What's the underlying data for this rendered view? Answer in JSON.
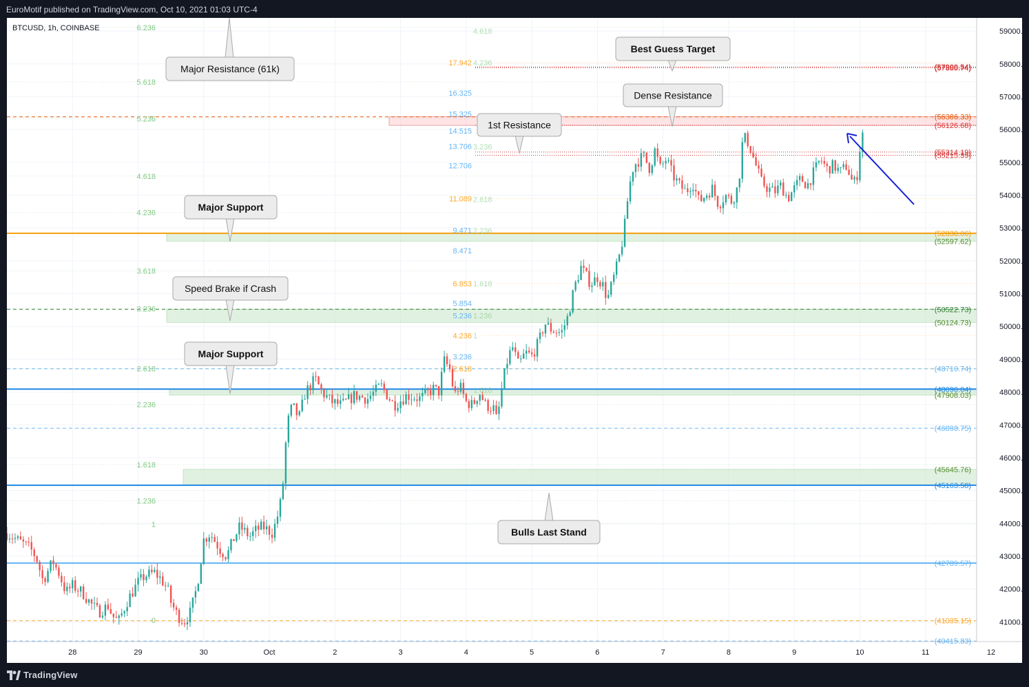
{
  "header": {
    "published_by": "EuroMotif published on TradingView.com, Oct 10, 2021 01:03 UTC-4"
  },
  "footer": {
    "logo_icon": "tradingview-logo-icon",
    "brand": "TradingView"
  },
  "colors": {
    "up": "#26a69a",
    "down": "#ef5350",
    "fib_left": "#81c784",
    "fib_mid_blue": "#64b5f6",
    "fib_mid_orange": "#ffa726",
    "res_red": "#d32f2f",
    "major_support": "#f59e0b",
    "support_blue": "#42a5f5",
    "zone_green": "#c8e6c9",
    "zone_red": "#ffcdd2",
    "arrow": "#1520d6"
  },
  "chart_data": {
    "type": "candlestick",
    "symbol": "BTCUSD, 1h, COINBASE",
    "y_axis": {
      "ylim": [
        40400,
        59400
      ],
      "ticks": [
        41000,
        42000,
        43000,
        44000,
        45000,
        46000,
        47000,
        48000,
        49000,
        50000,
        51000,
        52000,
        53000,
        54000,
        55000,
        56000,
        57000,
        58000,
        59000
      ],
      "tick_labels": [
        "41000.00",
        "42000.00",
        "43000.00",
        "44000.00",
        "45000.00",
        "46000.00",
        "47000.00",
        "48000.00",
        "49000.00",
        "50000.00",
        "51000.00",
        "52000.00",
        "53000.00",
        "54000.00",
        "55000.00",
        "56000.00",
        "57000.00",
        "58000.00",
        "59000.00"
      ]
    },
    "x_axis": {
      "x_range_days": [
        0,
        14.78
      ],
      "ticks": [
        {
          "d": 1,
          "label": "28"
        },
        {
          "d": 2,
          "label": "29"
        },
        {
          "d": 3,
          "label": "30"
        },
        {
          "d": 4,
          "label": "Oct"
        },
        {
          "d": 5,
          "label": "2"
        },
        {
          "d": 6,
          "label": "3"
        },
        {
          "d": 7,
          "label": "4"
        },
        {
          "d": 8,
          "label": "5"
        },
        {
          "d": 9,
          "label": "6"
        },
        {
          "d": 10,
          "label": "7"
        },
        {
          "d": 11,
          "label": "8"
        },
        {
          "d": 12,
          "label": "9"
        },
        {
          "d": 13,
          "label": "10"
        },
        {
          "d": 14,
          "label": "11"
        },
        {
          "d": 15,
          "label": "12"
        }
      ]
    },
    "price_path": [
      [
        0.0,
        43700
      ],
      [
        0.35,
        43250
      ],
      [
        0.45,
        42950
      ],
      [
        0.55,
        42250
      ],
      [
        0.65,
        42650
      ],
      [
        0.7,
        42850
      ],
      [
        0.8,
        42450
      ],
      [
        0.9,
        41900
      ],
      [
        1.0,
        42100
      ],
      [
        1.15,
        41900
      ],
      [
        1.3,
        41500
      ],
      [
        1.4,
        41300
      ],
      [
        1.55,
        41500
      ],
      [
        1.6,
        41200
      ],
      [
        1.7,
        41000
      ],
      [
        1.85,
        41700
      ],
      [
        2.0,
        42200
      ],
      [
        2.1,
        42400
      ],
      [
        2.25,
        42500
      ],
      [
        2.35,
        42300
      ],
      [
        2.45,
        42000
      ],
      [
        2.5,
        41600
      ],
      [
        2.6,
        41200
      ],
      [
        2.7,
        41000
      ],
      [
        2.8,
        41300
      ],
      [
        2.9,
        42100
      ],
      [
        3.0,
        43500
      ],
      [
        3.1,
        43700
      ],
      [
        3.25,
        43200
      ],
      [
        3.35,
        43000
      ],
      [
        3.45,
        43500
      ],
      [
        3.55,
        43900
      ],
      [
        3.7,
        43600
      ],
      [
        3.8,
        43800
      ],
      [
        3.9,
        43900
      ],
      [
        4.05,
        43700
      ],
      [
        4.15,
        44400
      ],
      [
        4.2,
        45000
      ],
      [
        4.27,
        47000
      ],
      [
        4.35,
        47600
      ],
      [
        4.45,
        47200
      ],
      [
        4.55,
        48000
      ],
      [
        4.7,
        48400
      ],
      [
        4.8,
        48000
      ],
      [
        4.95,
        47700
      ],
      [
        5.1,
        47600
      ],
      [
        5.3,
        47900
      ],
      [
        5.5,
        47800
      ],
      [
        5.7,
        48200
      ],
      [
        5.9,
        47600
      ],
      [
        6.1,
        47900
      ],
      [
        6.3,
        47800
      ],
      [
        6.5,
        48100
      ],
      [
        6.6,
        48000
      ],
      [
        6.65,
        49000
      ],
      [
        6.75,
        48700
      ],
      [
        6.82,
        47900
      ],
      [
        6.9,
        48200
      ],
      [
        7.0,
        47700
      ],
      [
        7.1,
        47600
      ],
      [
        7.2,
        48000
      ],
      [
        7.3,
        47600
      ],
      [
        7.42,
        47500
      ],
      [
        7.47,
        47100
      ],
      [
        7.55,
        48200
      ],
      [
        7.62,
        48900
      ],
      [
        7.7,
        49400
      ],
      [
        7.8,
        48800
      ],
      [
        7.9,
        49200
      ],
      [
        8.0,
        49100
      ],
      [
        8.1,
        49500
      ],
      [
        8.2,
        50100
      ],
      [
        8.3,
        49900
      ],
      [
        8.45,
        49800
      ],
      [
        8.55,
        50300
      ],
      [
        8.65,
        51200
      ],
      [
        8.75,
        51800
      ],
      [
        8.9,
        51300
      ],
      [
        9.0,
        51500
      ],
      [
        9.1,
        51200
      ],
      [
        9.15,
        50800
      ],
      [
        9.25,
        51500
      ],
      [
        9.32,
        52000
      ],
      [
        9.4,
        52800
      ],
      [
        9.48,
        54200
      ],
      [
        9.55,
        54900
      ],
      [
        9.7,
        55200
      ],
      [
        9.8,
        54800
      ],
      [
        9.88,
        55400
      ],
      [
        9.95,
        54800
      ],
      [
        10.05,
        55100
      ],
      [
        10.15,
        54600
      ],
      [
        10.25,
        54300
      ],
      [
        10.35,
        54100
      ],
      [
        10.45,
        54400
      ],
      [
        10.55,
        53800
      ],
      [
        10.65,
        54000
      ],
      [
        10.75,
        54200
      ],
      [
        10.85,
        53700
      ],
      [
        10.95,
        54000
      ],
      [
        11.05,
        53800
      ],
      [
        11.15,
        54300
      ],
      [
        11.22,
        55800
      ],
      [
        11.3,
        55600
      ],
      [
        11.4,
        55000
      ],
      [
        11.5,
        54400
      ],
      [
        11.6,
        54200
      ],
      [
        11.7,
        54100
      ],
      [
        11.8,
        54300
      ],
      [
        11.9,
        53900
      ],
      [
        12.0,
        54200
      ],
      [
        12.1,
        54500
      ],
      [
        12.2,
        54300
      ],
      [
        12.3,
        54700
      ],
      [
        12.4,
        55100
      ],
      [
        12.5,
        54800
      ],
      [
        12.6,
        54900
      ],
      [
        12.7,
        54700
      ],
      [
        12.8,
        54900
      ],
      [
        12.9,
        54300
      ],
      [
        12.97,
        54700
      ],
      [
        13.02,
        55900
      ],
      [
        13.08,
        55900
      ]
    ],
    "horizontal_levels": [
      {
        "value": 57909.54,
        "label": "(57909.54)",
        "color": "#d32f2f",
        "style": "dotted"
      },
      {
        "value": 57880.74,
        "label": "(57880.74)",
        "color": "#d32f2f",
        "style": "dotted"
      },
      {
        "value": 56386.33,
        "label": "(56386.33)",
        "color": "#e65100",
        "style": "dashed"
      },
      {
        "value": 56126.68,
        "label": "(56126.68)",
        "color": "#d32f2f",
        "style": "dotted"
      },
      {
        "value": 55314.19,
        "label": "(55314.19)",
        "color": "#d32f2f",
        "style": "dotted"
      },
      {
        "value": 55215.39,
        "label": "(55215.39)",
        "color": "#d32f2f",
        "style": "dotted"
      },
      {
        "value": 52838.06,
        "label": "(52838.06)",
        "color": "#f59e0b",
        "style": "solid"
      },
      {
        "value": 52597.62,
        "label": "(52597.62)",
        "color": "#81c784",
        "style": "zone"
      },
      {
        "value": 50522.73,
        "label": "(50522.73)",
        "color": "#2e7d32",
        "style": "dashed"
      },
      {
        "value": 50124.73,
        "label": "(50124.73)",
        "color": "#81c784",
        "style": "zone"
      },
      {
        "value": 48710.74,
        "label": "(48710.74)",
        "color": "#64b5f6",
        "style": "dashed"
      },
      {
        "value": 48090.04,
        "label": "(48090.04)",
        "color": "#1e88e5",
        "style": "solid"
      },
      {
        "value": 47908.03,
        "label": "(47908.03)",
        "color": "#81c784",
        "style": "zone"
      },
      {
        "value": 46898.75,
        "label": "(46898.75)",
        "color": "#64b5f6",
        "style": "dashed"
      },
      {
        "value": 45645.76,
        "label": "(45645.76)",
        "color": "#81c784",
        "style": "zone"
      },
      {
        "value": 45163.58,
        "label": "(45163.58)",
        "color": "#1e88e5",
        "style": "solid"
      },
      {
        "value": 42789.57,
        "label": "(42789.57)",
        "color": "#64b5f6",
        "style": "solid"
      },
      {
        "value": 41035.15,
        "label": "(41035.15)",
        "color": "#ffa726",
        "style": "dashed"
      },
      {
        "value": 40415.83,
        "label": "(40415.83)",
        "color": "#64b5f6",
        "style": "dashed"
      }
    ],
    "fib_left": [
      {
        "label": "6.236",
        "value": 59110
      },
      {
        "label": "5.618",
        "value": 57450
      },
      {
        "label": "5.236",
        "value": 56330
      },
      {
        "label": "4.618",
        "value": 54580
      },
      {
        "label": "4.236",
        "value": 53480
      },
      {
        "label": "3.618",
        "value": 51690
      },
      {
        "label": "3.236",
        "value": 50540
      },
      {
        "label": "2.618",
        "value": 48720
      },
      {
        "label": "2.236",
        "value": 47620
      },
      {
        "label": "1.618",
        "value": 45790
      },
      {
        "label": "1.236",
        "value": 44690
      },
      {
        "label": "1",
        "value": 43980
      },
      {
        "label": "0",
        "value": 41050
      }
    ],
    "fib_mid_green": [
      {
        "label": "4.618",
        "value": 59000
      },
      {
        "label": "4.236",
        "value": 58040
      },
      {
        "label": "3.236",
        "value": 55480
      },
      {
        "label": "2.618",
        "value": 53870
      },
      {
        "label": "2.236",
        "value": 52920
      },
      {
        "label": "1.618",
        "value": 51310
      },
      {
        "label": "1.236",
        "value": 50330
      },
      {
        "label": "1",
        "value": 49720
      },
      {
        "label": "1.618",
        "value": 48060
      }
    ],
    "fib_mid_blue": [
      {
        "label": "16.325",
        "value": 57110
      },
      {
        "label": "15.325",
        "value": 56470
      },
      {
        "label": "14.515",
        "value": 55960
      },
      {
        "label": "13.706",
        "value": 55490
      },
      {
        "label": "12.706",
        "value": 54900
      },
      {
        "label": "9.471",
        "value": 52930
      },
      {
        "label": "8.471",
        "value": 52310
      },
      {
        "label": "5.854",
        "value": 50710
      },
      {
        "label": "5.236",
        "value": 50330
      },
      {
        "label": "3.236",
        "value": 49080
      }
    ],
    "fib_mid_orange": [
      {
        "label": "17.942",
        "value": 58040
      },
      {
        "label": "11.089",
        "value": 53900
      },
      {
        "label": "6.853",
        "value": 51310
      },
      {
        "label": "4.236",
        "value": 49720
      },
      {
        "label": "2.618",
        "value": 48710
      }
    ],
    "annotations": [
      {
        "text": "Major Resistance (61k)",
        "bold": false
      },
      {
        "text": "Best Guess Target",
        "bold": true
      },
      {
        "text": "Dense Resistance",
        "bold": false
      },
      {
        "text": "1st Resistance",
        "bold": false
      },
      {
        "text": "Major Support",
        "bold": true
      },
      {
        "text": "Speed Brake if Crash",
        "bold": false
      },
      {
        "text": "Major Support",
        "bold": true
      },
      {
        "text": "Bulls Last Stand",
        "bold": true
      }
    ]
  }
}
